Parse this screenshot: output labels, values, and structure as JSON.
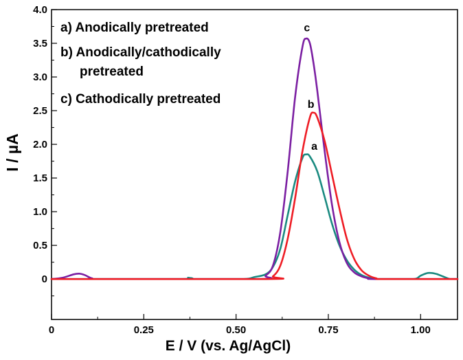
{
  "chart_data": {
    "type": "line",
    "xlabel": "E / V (vs. Ag/AgCl)",
    "ylabel": "I / µA",
    "xlim": [
      0,
      1.1
    ],
    "ylim": [
      -0.6,
      4.0
    ],
    "x_ticks": [
      {
        "value": 0,
        "label": "0"
      },
      {
        "value": 0.25,
        "label": "0.25"
      },
      {
        "value": 0.5,
        "label": "0.50"
      },
      {
        "value": 0.75,
        "label": "0.75"
      },
      {
        "value": 1.0,
        "label": "1.00"
      }
    ],
    "y_ticks": [
      {
        "value": 0,
        "label": "0"
      },
      {
        "value": 0.5,
        "label": "0.5"
      },
      {
        "value": 1.0,
        "label": "1.0"
      },
      {
        "value": 1.5,
        "label": "1.5"
      },
      {
        "value": 2.0,
        "label": "2.0"
      },
      {
        "value": 2.5,
        "label": "2.5"
      },
      {
        "value": 3.0,
        "label": "3.0"
      },
      {
        "value": 3.5,
        "label": "3.5"
      },
      {
        "value": 4.0,
        "label": "4.0"
      }
    ],
    "legend": [
      "a) Anodically pretreated",
      "b) Anodically/cathodically",
      "pretreated",
      "c) Cathodically pretreated"
    ],
    "series": [
      {
        "name": "a",
        "color": "#1a8a80",
        "x": [
          0.0,
          0.35,
          0.37,
          0.38,
          0.4,
          0.52,
          0.55,
          0.58,
          0.6,
          0.62,
          0.64,
          0.66,
          0.68,
          0.69,
          0.7,
          0.72,
          0.74,
          0.76,
          0.78,
          0.8,
          0.82,
          0.84,
          0.86,
          0.88,
          0.9,
          0.98,
          1.0,
          1.02,
          1.04,
          1.06,
          1.08,
          1.1
        ],
        "y": [
          0.0,
          0.0,
          0.02,
          0.0,
          0.0,
          0.0,
          0.03,
          0.07,
          0.18,
          0.45,
          0.95,
          1.45,
          1.8,
          1.85,
          1.82,
          1.6,
          1.22,
          0.82,
          0.5,
          0.28,
          0.14,
          0.06,
          0.02,
          0.0,
          0.0,
          0.0,
          0.05,
          0.09,
          0.08,
          0.04,
          0.0,
          0.0
        ]
      },
      {
        "name": "b",
        "color": "#ee1c24",
        "x": [
          0.0,
          0.58,
          0.6,
          0.62,
          0.64,
          0.66,
          0.68,
          0.7,
          0.71,
          0.72,
          0.74,
          0.76,
          0.78,
          0.8,
          0.82,
          0.84,
          0.86,
          0.88,
          0.9,
          1.1
        ],
        "y": [
          0.0,
          0.0,
          0.04,
          0.2,
          0.6,
          1.2,
          1.9,
          2.4,
          2.47,
          2.4,
          2.05,
          1.55,
          1.05,
          0.6,
          0.3,
          0.13,
          0.05,
          0.01,
          0.0,
          0.0
        ]
      },
      {
        "name": "c",
        "color": "#7b1fa2",
        "x": [
          0.0,
          0.03,
          0.06,
          0.075,
          0.09,
          0.11,
          0.14,
          0.56,
          0.58,
          0.6,
          0.62,
          0.64,
          0.66,
          0.68,
          0.69,
          0.7,
          0.71,
          0.72,
          0.74,
          0.76,
          0.78,
          0.8,
          0.82,
          0.84,
          0.86,
          0.88,
          1.1
        ],
        "y": [
          0.0,
          0.02,
          0.07,
          0.08,
          0.06,
          0.01,
          0.0,
          0.0,
          0.05,
          0.2,
          0.7,
          1.6,
          2.7,
          3.45,
          3.57,
          3.5,
          3.2,
          2.8,
          1.9,
          1.1,
          0.55,
          0.24,
          0.1,
          0.04,
          0.01,
          0.0,
          0.0
        ]
      }
    ],
    "curve_labels": [
      {
        "text": "c",
        "x": 0.692,
        "y": 3.68
      },
      {
        "text": "b",
        "x": 0.703,
        "y": 2.54
      },
      {
        "text": "a",
        "x": 0.712,
        "y": 1.92
      }
    ]
  }
}
